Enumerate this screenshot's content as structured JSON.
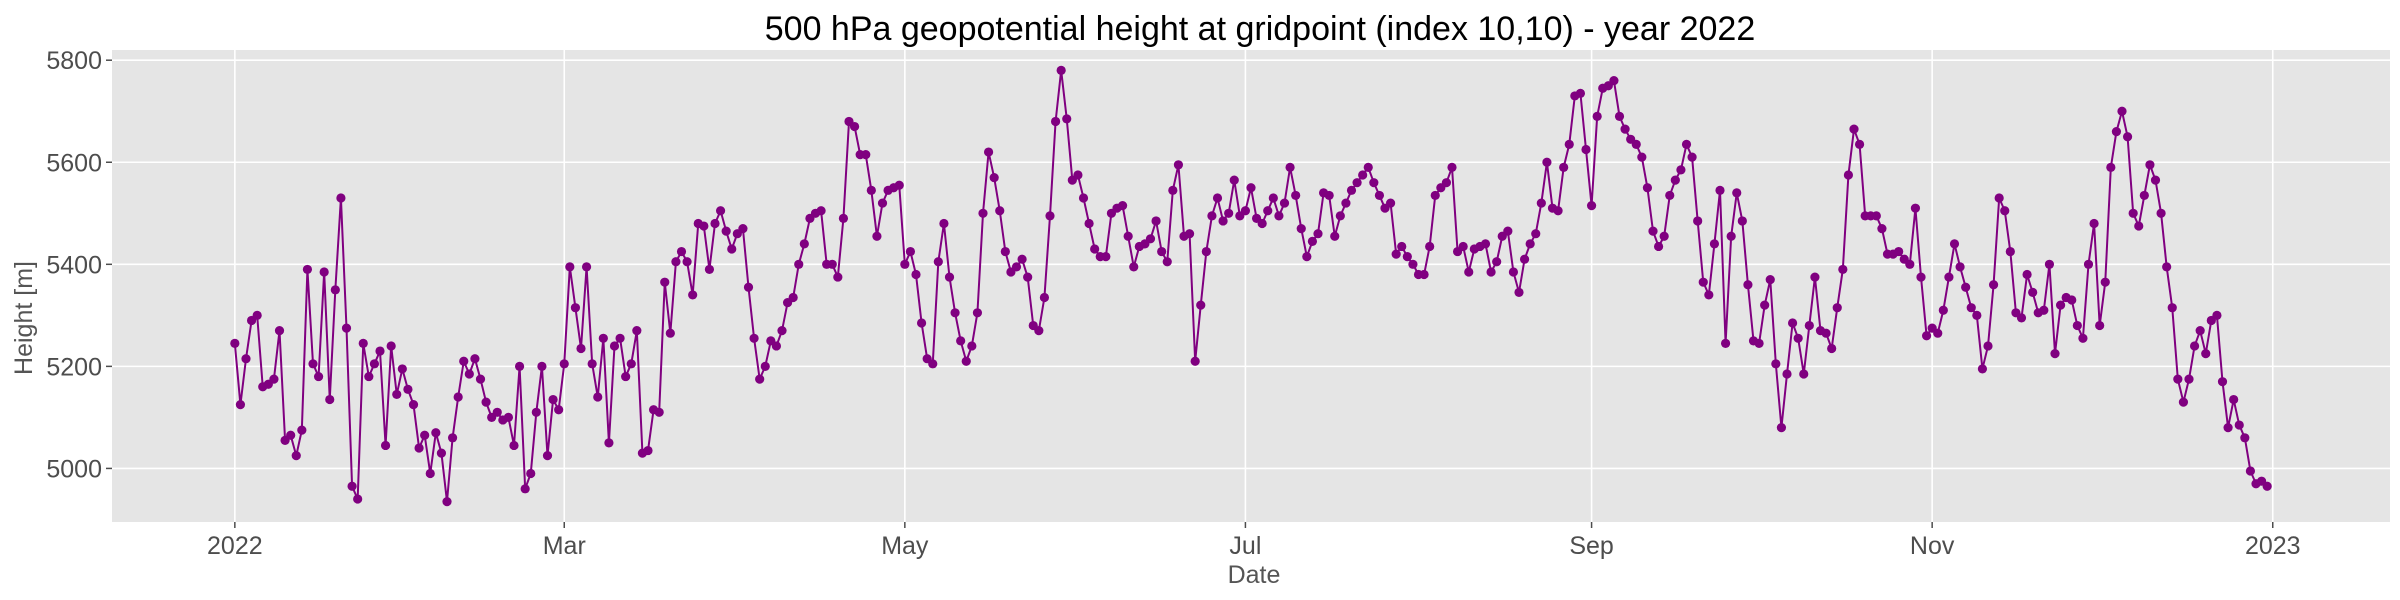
{
  "chart_data": {
    "type": "line",
    "title": "500 hPa geopotential height at gridpoint (index 10,10) - year 2022",
    "xlabel": "Date",
    "ylabel": "Height [m]",
    "xlim": [
      "2021-12-10",
      "2023-01-22"
    ],
    "ylim": [
      4895,
      5820
    ],
    "x_start": "2022-01-01",
    "x_step": "1 day",
    "x_ticks": [
      {
        "date": "2022-01-01",
        "label": "2022"
      },
      {
        "date": "2022-03-01",
        "label": "Mar"
      },
      {
        "date": "2022-05-01",
        "label": "May"
      },
      {
        "date": "2022-07-01",
        "label": "Jul"
      },
      {
        "date": "2022-09-01",
        "label": "Sep"
      },
      {
        "date": "2022-11-01",
        "label": "Nov"
      },
      {
        "date": "2023-01-01",
        "label": "2023"
      }
    ],
    "y_ticks": [
      5000,
      5200,
      5400,
      5600,
      5800
    ],
    "grid": true,
    "legend": "none",
    "colors": {
      "series": "#800080",
      "plot_bg": "#e5e5e5",
      "grid": "#ffffff"
    },
    "series": [
      {
        "values": [
          5245,
          5125,
          5215,
          5290,
          5300,
          5160,
          5165,
          5175,
          5270,
          5055,
          5065,
          5025,
          5075,
          5390,
          5205,
          5180,
          5385,
          5135,
          5350,
          5530,
          5275,
          4965,
          4940,
          5245,
          5180,
          5205,
          5230,
          5045,
          5240,
          5145,
          5195,
          5155,
          5125,
          5040,
          5065,
          4990,
          5070,
          5030,
          4935,
          5060,
          5140,
          5210,
          5185,
          5215,
          5175,
          5130,
          5100,
          5110,
          5095,
          5100,
          5045,
          5200,
          4960,
          4990,
          5110,
          5200,
          5025,
          5135,
          5115,
          5205,
          5395,
          5315,
          5235,
          5395,
          5205,
          5140,
          5255,
          5050,
          5240,
          5255,
          5180,
          5205,
          5270,
          5030,
          5035,
          5115,
          5110,
          5365,
          5265,
          5405,
          5425,
          5405,
          5340,
          5480,
          5475,
          5390,
          5480,
          5505,
          5465,
          5430,
          5460,
          5470,
          5355,
          5255,
          5175,
          5200,
          5250,
          5240,
          5270,
          5325,
          5335,
          5400,
          5440,
          5490,
          5500,
          5505,
          5400,
          5400,
          5375,
          5490,
          5680,
          5670,
          5615,
          5615,
          5545,
          5455,
          5520,
          5545,
          5550,
          5555,
          5400,
          5425,
          5380,
          5285,
          5215,
          5205,
          5405,
          5480,
          5375,
          5305,
          5250,
          5210,
          5240,
          5305,
          5500,
          5620,
          5570,
          5505,
          5425,
          5385,
          5395,
          5410,
          5375,
          5280,
          5270,
          5335,
          5495,
          5680,
          5780,
          5685,
          5565,
          5575,
          5530,
          5480,
          5430,
          5415,
          5415,
          5500,
          5510,
          5515,
          5455,
          5395,
          5435,
          5440,
          5450,
          5485,
          5425,
          5405,
          5545,
          5595,
          5455,
          5460,
          5210,
          5320,
          5425,
          5495,
          5530,
          5485,
          5500,
          5565,
          5495,
          5505,
          5550,
          5490,
          5480,
          5505,
          5530,
          5495,
          5520,
          5590,
          5535,
          5470,
          5415,
          5445,
          5460,
          5540,
          5535,
          5455,
          5495,
          5520,
          5545,
          5560,
          5575,
          5590,
          5560,
          5535,
          5510,
          5520,
          5420,
          5435,
          5415,
          5400,
          5380,
          5380,
          5435,
          5535,
          5550,
          5560,
          5590,
          5425,
          5435,
          5385,
          5430,
          5435,
          5440,
          5385,
          5405,
          5455,
          5465,
          5385,
          5345,
          5410,
          5440,
          5460,
          5520,
          5600,
          5510,
          5505,
          5590,
          5635,
          5730,
          5735,
          5625,
          5515,
          5690,
          5745,
          5750,
          5760,
          5690,
          5665,
          5645,
          5635,
          5610,
          5550,
          5465,
          5435,
          5455,
          5535,
          5565,
          5585,
          5635,
          5610,
          5485,
          5365,
          5340,
          5440,
          5545,
          5245,
          5455,
          5540,
          5485,
          5360,
          5250,
          5245,
          5320,
          5370,
          5205,
          5080,
          5185,
          5285,
          5255,
          5185,
          5280,
          5375,
          5270,
          5265,
          5235,
          5315,
          5390,
          5575,
          5665,
          5635,
          5495,
          5495,
          5495,
          5470,
          5420,
          5420,
          5425,
          5410,
          5400,
          5510,
          5375,
          5260,
          5275,
          5265,
          5310,
          5375,
          5440,
          5395,
          5355,
          5315,
          5300,
          5195,
          5240,
          5360,
          5530,
          5505,
          5425,
          5305,
          5295,
          5380,
          5345,
          5305,
          5310,
          5400,
          5225,
          5320,
          5335,
          5330,
          5280,
          5255,
          5400,
          5480,
          5280,
          5365,
          5590,
          5660,
          5700,
          5650,
          5500,
          5475,
          5535,
          5595,
          5565,
          5500,
          5395,
          5315,
          5175,
          5130,
          5175,
          5240,
          5270,
          5225,
          5290,
          5300,
          5170,
          5080,
          5135,
          5085,
          5060,
          4995,
          4970,
          4975,
          4965
        ]
      }
    ]
  }
}
